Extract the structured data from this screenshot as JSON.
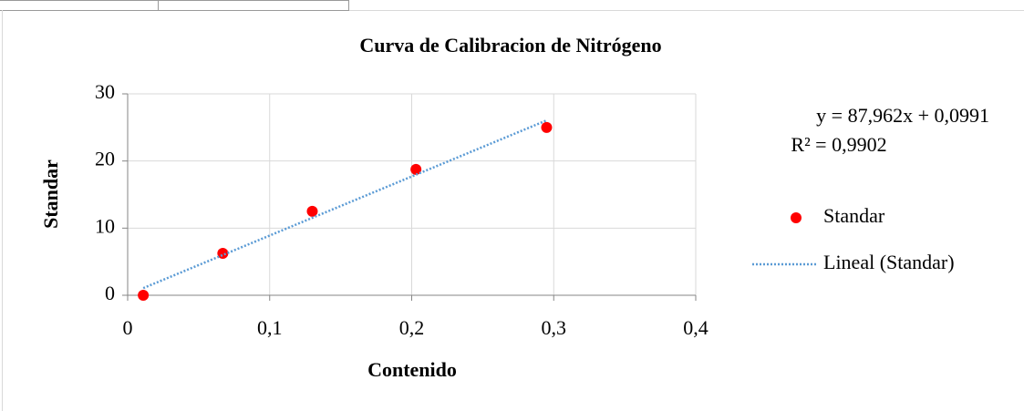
{
  "chart_data": {
    "type": "scatter",
    "title": "Curva de Calibracion de Nitrógeno",
    "xlabel": "Contenido",
    "ylabel": "Standar",
    "xlim": [
      0,
      0.4
    ],
    "ylim": [
      0,
      30
    ],
    "xticks": [
      0,
      {
        "value": 0.1,
        "label": "0,1"
      },
      {
        "value": 0.2,
        "label": "0,2"
      },
      {
        "value": 0.3,
        "label": "0,3"
      },
      {
        "value": 0.4,
        "label": "0,4"
      }
    ],
    "yticks": [
      0,
      10,
      20,
      30
    ],
    "grid": true,
    "annotations": [
      "y = 87,962x + 0,0991",
      "R² = 0,9902"
    ],
    "series": [
      {
        "name": "Standar",
        "color": "#ff0000",
        "x": [
          0.011,
          0.067,
          0.13,
          0.203,
          0.295
        ],
        "values": [
          0,
          6.25,
          12.5,
          18.75,
          25
        ]
      },
      {
        "name": "Lineal (Standar)",
        "color": "#5b9bd5",
        "style": "dotted",
        "x": [
          0.011,
          0.295
        ],
        "values": [
          1.067,
          26.05
        ]
      }
    ]
  }
}
